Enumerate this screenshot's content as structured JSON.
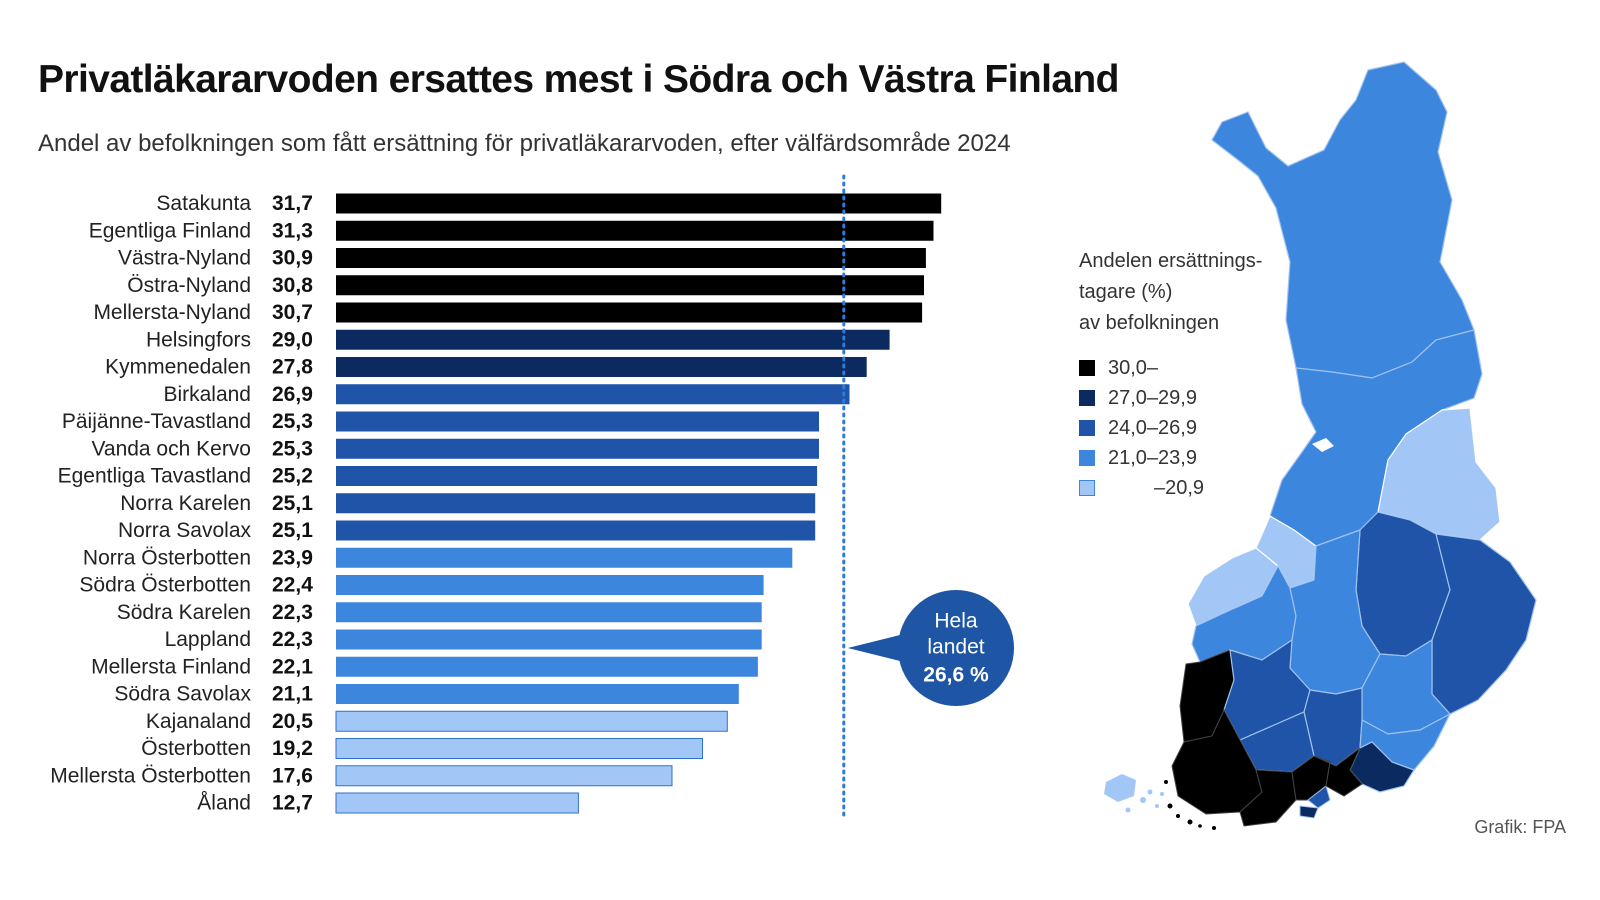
{
  "title": "Privatläkararvoden ersattes mest i Södra och Västra Finland",
  "subtitle": "Andel av befolkningen som fått ersättning för privatläkararvoden, efter välfärdsområde 2024",
  "colors": {
    "band_30": "#000000",
    "band_27": "#0b2a5f",
    "band_24": "#1f54a8",
    "band_21": "#3c86de",
    "band_low": "#a2c7f7",
    "reference_line": "#2f7bd8",
    "callout": "#1f55a5"
  },
  "chart_data": {
    "type": "bar",
    "orientation": "horizontal",
    "title": "Privatläkararvoden ersattes mest i Södra och Västra Finland",
    "subtitle": "Andel av befolkningen som fått ersättning för privatläkararvoden, efter välfärdsområde 2024",
    "unit": "%",
    "xlim": [
      0,
      31.7
    ],
    "categories": [
      "Satakunta",
      "Egentliga Finland",
      "Västra-Nyland",
      "Östra-Nyland",
      "Mellersta-Nyland",
      "Helsingfors",
      "Kymmenedalen",
      "Birkaland",
      "Päijänne-Tavastland",
      "Vanda och Kervo",
      "Egentliga Tavastland",
      "Norra Karelen",
      "Norra Savolax",
      "Norra Österbotten",
      "Södra Österbotten",
      "Södra Karelen",
      "Lappland",
      "Mellersta Finland",
      "Södra Savolax",
      "Kajanaland",
      "Österbotten",
      "Mellersta Österbotten",
      "Åland"
    ],
    "values": [
      31.7,
      31.3,
      30.9,
      30.8,
      30.7,
      29.0,
      27.8,
      26.9,
      25.3,
      25.3,
      25.2,
      25.1,
      25.1,
      23.9,
      22.4,
      22.3,
      22.3,
      22.1,
      21.1,
      20.5,
      19.2,
      17.6,
      12.7
    ],
    "value_labels": [
      "31,7",
      "31,3",
      "30,9",
      "30,8",
      "30,7",
      "29,0",
      "27,8",
      "26,9",
      "25,3",
      "25,3",
      "25,2",
      "25,1",
      "25,1",
      "23,9",
      "22,4",
      "22,3",
      "22,3",
      "22,1",
      "21,1",
      "20,5",
      "19,2",
      "17,6",
      "12,7"
    ],
    "reference": {
      "value": 26.6,
      "label_lines": [
        "Hela",
        "landet",
        "26,6 %"
      ]
    },
    "legend": {
      "title_lines": [
        "Andelen ersättnings-",
        "tagare (%)",
        "av befolkningen"
      ],
      "items": [
        {
          "label": "30,0–",
          "min": 30.0,
          "color": "#000000"
        },
        {
          "label": "27,0–29,9",
          "min": 27.0,
          "color": "#0b2a5f"
        },
        {
          "label": "24,0–26,9",
          "min": 24.0,
          "color": "#1f54a8"
        },
        {
          "label": "21,0–23,9",
          "min": 21.0,
          "color": "#3c86de"
        },
        {
          "label": "–20,9",
          "min": 0,
          "color": "#a2c7f7"
        }
      ]
    }
  },
  "credit": "Grafik: FPA"
}
